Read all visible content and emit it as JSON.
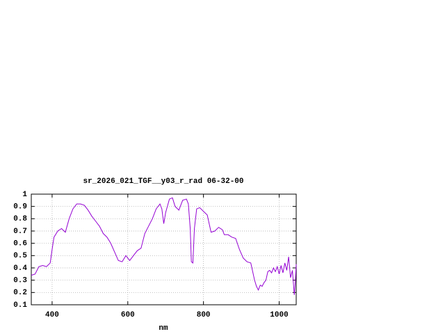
{
  "chart_data": {
    "type": "line",
    "title": "sr_2026_021_TGF__y03_r_rad 06-32-00",
    "x_label": "nm",
    "x": [
      345,
      355,
      365,
      375,
      385,
      395,
      400,
      405,
      415,
      425,
      435,
      445,
      455,
      465,
      475,
      485,
      495,
      505,
      515,
      525,
      535,
      545,
      555,
      565,
      575,
      585,
      595,
      605,
      615,
      625,
      635,
      645,
      655,
      665,
      675,
      685,
      690,
      695,
      700,
      710,
      718,
      725,
      735,
      745,
      755,
      760,
      765,
      768,
      772,
      776,
      782,
      790,
      800,
      810,
      820,
      830,
      840,
      850,
      855,
      865,
      875,
      885,
      895,
      905,
      915,
      925,
      935,
      940,
      945,
      950,
      955,
      960,
      965,
      970,
      975,
      980,
      985,
      990,
      995,
      1000,
      1005,
      1010,
      1015,
      1020,
      1025,
      1030,
      1035,
      1040,
      1043,
      1045
    ],
    "series": [
      {
        "name": "r_rad",
        "color": "#9400d3",
        "values": [
          0.34,
          0.35,
          0.41,
          0.42,
          0.41,
          0.44,
          0.55,
          0.65,
          0.7,
          0.72,
          0.69,
          0.8,
          0.88,
          0.92,
          0.92,
          0.91,
          0.87,
          0.82,
          0.78,
          0.74,
          0.68,
          0.65,
          0.6,
          0.53,
          0.46,
          0.45,
          0.5,
          0.46,
          0.5,
          0.54,
          0.56,
          0.68,
          0.74,
          0.8,
          0.88,
          0.92,
          0.88,
          0.76,
          0.85,
          0.96,
          0.97,
          0.9,
          0.87,
          0.95,
          0.96,
          0.92,
          0.72,
          0.45,
          0.44,
          0.72,
          0.88,
          0.89,
          0.86,
          0.83,
          0.69,
          0.7,
          0.73,
          0.71,
          0.67,
          0.67,
          0.65,
          0.64,
          0.55,
          0.48,
          0.45,
          0.44,
          0.3,
          0.25,
          0.22,
          0.26,
          0.25,
          0.28,
          0.3,
          0.37,
          0.38,
          0.36,
          0.4,
          0.37,
          0.41,
          0.35,
          0.42,
          0.36,
          0.44,
          0.38,
          0.49,
          0.32,
          0.38,
          0.18,
          0.3,
          0.43
        ]
      }
    ],
    "xlim": [
      345,
      1045
    ],
    "xticks": [
      400,
      600,
      800,
      1000
    ],
    "ylim": [
      0.1,
      1
    ],
    "yticks": [
      0.1,
      0.2,
      0.3,
      0.4,
      0.5,
      0.6,
      0.7,
      0.8,
      0.9,
      1
    ],
    "grid": true
  }
}
